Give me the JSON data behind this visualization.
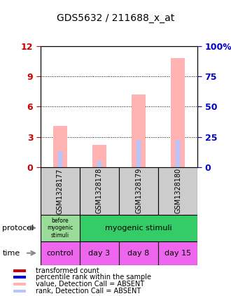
{
  "title": "GDS5632 / 211688_x_at",
  "samples": [
    "GSM1328177",
    "GSM1328178",
    "GSM1328179",
    "GSM1328180"
  ],
  "bar_values": [
    4.1,
    2.2,
    7.2,
    10.8
  ],
  "rank_values": [
    1.6,
    0.6,
    2.7,
    2.7
  ],
  "ylim_left": [
    0,
    12
  ],
  "ylim_right": [
    0,
    100
  ],
  "yticks_left": [
    0,
    3,
    6,
    9,
    12
  ],
  "yticks_right": [
    0,
    25,
    50,
    75,
    100
  ],
  "bar_color": "#ffb3b3",
  "rank_color": "#b3c6ff",
  "time_labels": [
    "control",
    "day 3",
    "day 8",
    "day 15"
  ],
  "time_color": "#ee66ee",
  "proto_color_1": "#99dd99",
  "proto_color_2": "#33cc66",
  "sample_box_color": "#cccccc",
  "legend_items": [
    {
      "label": "transformed count",
      "color": "#cc0000"
    },
    {
      "label": "percentile rank within the sample",
      "color": "#0000cc"
    },
    {
      "label": "value, Detection Call = ABSENT",
      "color": "#ffb3b3"
    },
    {
      "label": "rank, Detection Call = ABSENT",
      "color": "#b3c6ff"
    }
  ],
  "left_axis_color": "#cc0000",
  "right_axis_color": "#0000cc"
}
